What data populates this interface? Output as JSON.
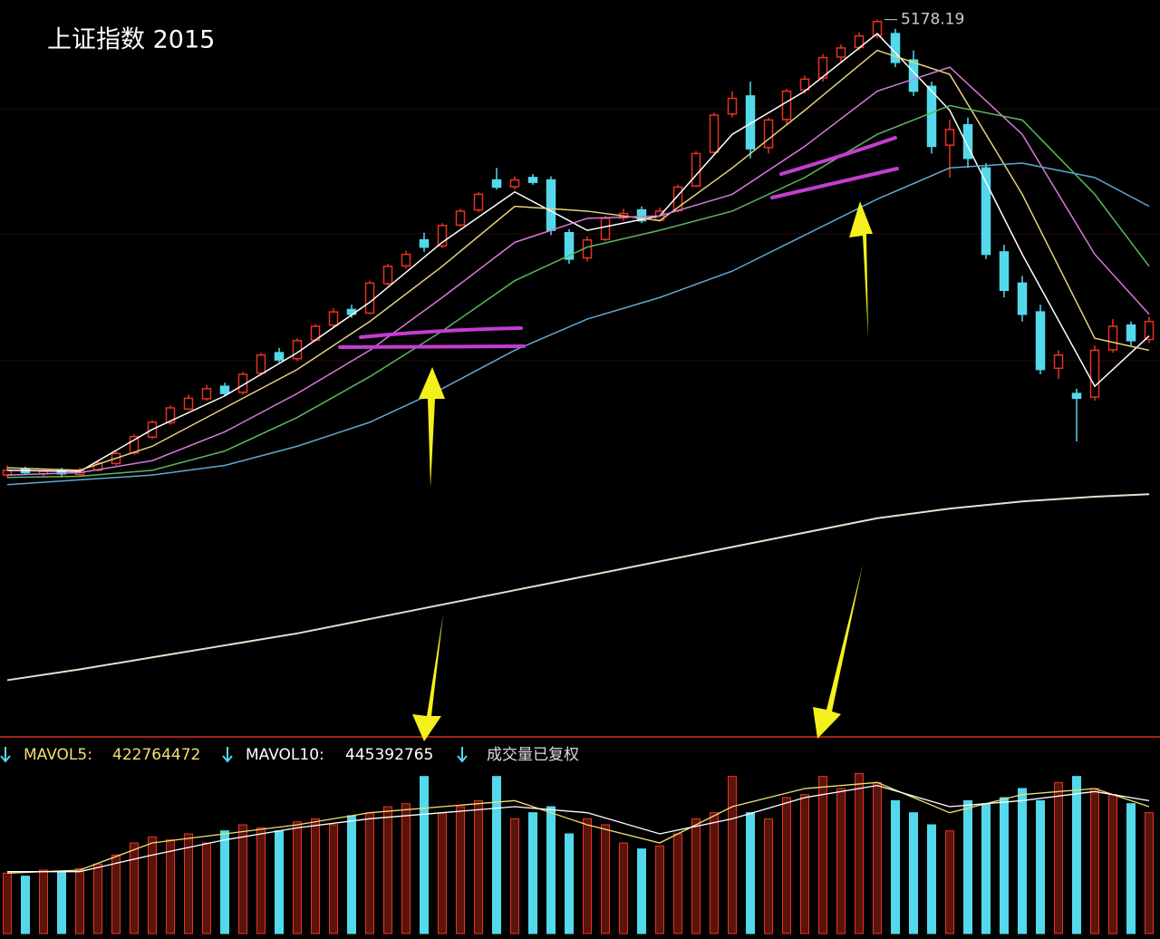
{
  "chart_data": {
    "type": "candlestick",
    "title": "上证指数 2015",
    "ylim": [
      2200,
      5260
    ],
    "up_color": "#e8331f",
    "down_color": "#54d8ec",
    "candles": [
      [
        3280,
        3320,
        3270,
        3300
      ],
      [
        3305,
        3315,
        3280,
        3290
      ],
      [
        3285,
        3305,
        3275,
        3296
      ],
      [
        3300,
        3310,
        3270,
        3285
      ],
      [
        3282,
        3310,
        3275,
        3300
      ],
      [
        3300,
        3340,
        3295,
        3330
      ],
      [
        3328,
        3380,
        3320,
        3370
      ],
      [
        3372,
        3450,
        3365,
        3440
      ],
      [
        3438,
        3510,
        3430,
        3500
      ],
      [
        3498,
        3570,
        3490,
        3560
      ],
      [
        3555,
        3615,
        3550,
        3600
      ],
      [
        3598,
        3655,
        3590,
        3640
      ],
      [
        3650,
        3665,
        3610,
        3620
      ],
      [
        3625,
        3710,
        3615,
        3700
      ],
      [
        3705,
        3790,
        3695,
        3780
      ],
      [
        3790,
        3810,
        3750,
        3760
      ],
      [
        3765,
        3850,
        3755,
        3840
      ],
      [
        3842,
        3910,
        3835,
        3900
      ],
      [
        3905,
        3975,
        3895,
        3960
      ],
      [
        3970,
        3990,
        3935,
        3950
      ],
      [
        3955,
        4090,
        3950,
        4080
      ],
      [
        4078,
        4160,
        4070,
        4150
      ],
      [
        4152,
        4215,
        4140,
        4200
      ],
      [
        4260,
        4290,
        4210,
        4230
      ],
      [
        4235,
        4330,
        4225,
        4320
      ],
      [
        4322,
        4390,
        4315,
        4380
      ],
      [
        4385,
        4460,
        4375,
        4450
      ],
      [
        4510,
        4560,
        4470,
        4480
      ],
      [
        4482,
        4525,
        4470,
        4510
      ],
      [
        4520,
        4535,
        4490,
        4500
      ],
      [
        4510,
        4525,
        4280,
        4300
      ],
      [
        4290,
        4305,
        4160,
        4180
      ],
      [
        4185,
        4275,
        4170,
        4260
      ],
      [
        4262,
        4360,
        4255,
        4350
      ],
      [
        4352,
        4390,
        4340,
        4370
      ],
      [
        4385,
        4400,
        4330,
        4340
      ],
      [
        4342,
        4395,
        4335,
        4380
      ],
      [
        4382,
        4490,
        4375,
        4480
      ],
      [
        4485,
        4630,
        4480,
        4620
      ],
      [
        4625,
        4790,
        4615,
        4780
      ],
      [
        4785,
        4880,
        4770,
        4850
      ],
      [
        4860,
        4920,
        4600,
        4640
      ],
      [
        4645,
        4770,
        4620,
        4760
      ],
      [
        4762,
        4890,
        4740,
        4880
      ],
      [
        4885,
        4945,
        4870,
        4930
      ],
      [
        4935,
        5035,
        4920,
        5020
      ],
      [
        5022,
        5075,
        5000,
        5060
      ],
      [
        5062,
        5125,
        5050,
        5110
      ],
      [
        5112,
        5178.19,
        5100,
        5170
      ],
      [
        5120,
        5140,
        4980,
        5000
      ],
      [
        5010,
        5050,
        4860,
        4880
      ],
      [
        4900,
        4920,
        4620,
        4650
      ],
      [
        4655,
        4760,
        4520,
        4720
      ],
      [
        4740,
        4770,
        4560,
        4600
      ],
      [
        4560,
        4580,
        4180,
        4200
      ],
      [
        4210,
        4240,
        4020,
        4050
      ],
      [
        4080,
        4110,
        3920,
        3950
      ],
      [
        3960,
        3990,
        3700,
        3720
      ],
      [
        3725,
        3800,
        3680,
        3780
      ],
      [
        3620,
        3640,
        3420,
        3600
      ],
      [
        3605,
        3820,
        3590,
        3800
      ],
      [
        3802,
        3930,
        3790,
        3900
      ],
      [
        3905,
        3920,
        3820,
        3840
      ],
      [
        3845,
        3940,
        3830,
        3920
      ]
    ],
    "ma_x": [
      0,
      4,
      8,
      12,
      16,
      20,
      24,
      28,
      32,
      36,
      40,
      44,
      48,
      52,
      56,
      60,
      63
    ],
    "ma_series": [
      {
        "color": "#ffffff",
        "values": [
          3300,
          3295,
          3470,
          3610,
          3790,
          4000,
          4250,
          4460,
          4300,
          4360,
          4700,
          4880,
          5120,
          4800,
          4200,
          3650,
          3860
        ]
      },
      {
        "color": "#e8d27a",
        "values": [
          3310,
          3300,
          3400,
          3560,
          3720,
          3920,
          4150,
          4400,
          4380,
          4340,
          4560,
          4800,
          5050,
          4950,
          4450,
          3850,
          3800
        ]
      },
      {
        "color": "#d77ad8",
        "values": [
          3280,
          3290,
          3340,
          3460,
          3620,
          3800,
          4020,
          4250,
          4350,
          4360,
          4450,
          4650,
          4880,
          4980,
          4700,
          4200,
          3950
        ]
      },
      {
        "color": "#5cb85c",
        "values": [
          3270,
          3275,
          3300,
          3380,
          3520,
          3690,
          3880,
          4090,
          4230,
          4300,
          4380,
          4520,
          4700,
          4820,
          4760,
          4450,
          4150
        ]
      },
      {
        "color": "#5fa8d8",
        "values": [
          3240,
          3260,
          3280,
          3320,
          3400,
          3500,
          3640,
          3800,
          3930,
          4020,
          4130,
          4280,
          4430,
          4560,
          4580,
          4520,
          4400
        ]
      },
      {
        "color": "#e6e1cf",
        "values": [
          2425,
          2470,
          2520,
          2570,
          2620,
          2680,
          2740,
          2800,
          2860,
          2920,
          2980,
          3040,
          3100,
          3140,
          3170,
          3190,
          3200
        ]
      }
    ],
    "volume": {
      "type": "bar",
      "label": "成交量已复权",
      "ylim": [
        0,
        540000000
      ],
      "values": [
        200000000,
        190000000,
        210000000,
        205000000,
        215000000,
        230000000,
        260000000,
        300000000,
        320000000,
        310000000,
        330000000,
        300000000,
        340000000,
        360000000,
        350000000,
        340000000,
        370000000,
        380000000,
        360000000,
        390000000,
        400000000,
        420000000,
        430000000,
        520000000,
        400000000,
        420000000,
        440000000,
        520000000,
        380000000,
        400000000,
        420000000,
        330000000,
        380000000,
        360000000,
        300000000,
        280000000,
        290000000,
        330000000,
        380000000,
        400000000,
        520000000,
        400000000,
        380000000,
        450000000,
        460000000,
        520000000,
        480000000,
        530000000,
        500000000,
        440000000,
        400000000,
        360000000,
        340000000,
        440000000,
        430000000,
        450000000,
        480000000,
        440000000,
        500000000,
        520000000,
        480000000,
        460000000,
        430000000,
        400000000
      ],
      "series": [
        {
          "name": "MAVOL5:",
          "current": 422764472,
          "color": "#f0e070",
          "values": [
            200000000,
            210000000,
            300000000,
            330000000,
            360000000,
            400000000,
            420000000,
            440000000,
            360000000,
            300000000,
            420000000,
            480000000,
            500000000,
            400000000,
            460000000,
            480000000,
            420000000
          ]
        },
        {
          "name": "MAVOL10:",
          "current": 445392765,
          "color": "#ffffff",
          "values": [
            205000000,
            205000000,
            260000000,
            310000000,
            350000000,
            380000000,
            400000000,
            420000000,
            400000000,
            330000000,
            380000000,
            450000000,
            490000000,
            420000000,
            440000000,
            470000000,
            440000000
          ]
        }
      ]
    }
  }
}
